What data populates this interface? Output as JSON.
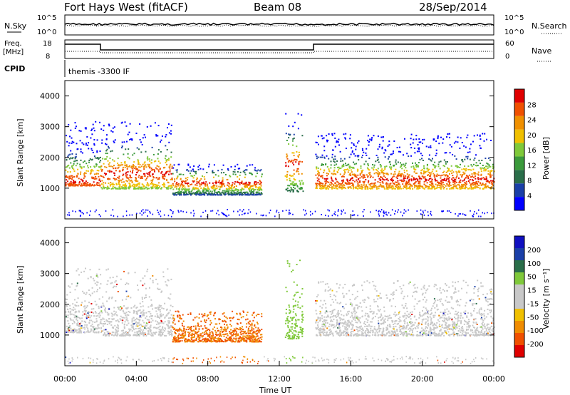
{
  "header": {
    "station": "Fort Hays West (fitACF)",
    "beam": "Beam 08",
    "date": "28/Sep/2014"
  },
  "panels": {
    "nsky_label": "N.Sky",
    "nsearch_label": "N.Search",
    "noise_ticks_left": [
      "10^5",
      "10^0"
    ],
    "noise_ticks_right": [
      "10^5",
      "10^0"
    ],
    "freq_label": "Freq.",
    "freq_unit": "[MHz]",
    "freq_ticks": [
      "18",
      "8"
    ],
    "nave_label": "Nave",
    "nave_ticks": [
      "60",
      "0"
    ],
    "cpid_label": "CPID",
    "cpid_text": "themis -3300 IF"
  },
  "colors": {
    "power": [
      "#0000ff",
      "#1a3fa8",
      "#2a6e4a",
      "#3b9a3b",
      "#7fc93a",
      "#f0c000",
      "#f09000",
      "#f05000",
      "#e00000"
    ],
    "velocity": [
      "#e00000",
      "#f05000",
      "#f08c00",
      "#f0c000",
      "#c8c8c8",
      "#c8c8c8",
      "#7fc93a",
      "#2a6e4a",
      "#1a3fa8",
      "#1010c0"
    ]
  },
  "chart_data": [
    {
      "type": "heatmap",
      "name": "power",
      "ylabel": "Slant Range [km]",
      "ylim": [
        0,
        4500
      ],
      "yticks": [
        1000,
        2000,
        3000,
        4000
      ],
      "xlim": [
        0,
        24
      ],
      "colorbar_label": "Power [dB]",
      "colorbar_ticks": [
        "28",
        "24",
        "20",
        "16",
        "12",
        "8",
        "4"
      ],
      "features": [
        {
          "hours": [
            0,
            2
          ],
          "range_km": [
            1100,
            3200
          ],
          "peak_km": 1250
        },
        {
          "hours": [
            2,
            6
          ],
          "range_km": [
            1000,
            3200
          ],
          "peak_km": 1500
        },
        {
          "hours": [
            6,
            11
          ],
          "range_km": [
            800,
            1800
          ],
          "peak_km": 1200
        },
        {
          "hours": [
            12.3,
            13.3
          ],
          "range_km": [
            900,
            3500
          ],
          "peak_km": 1800
        },
        {
          "hours": [
            14,
            24
          ],
          "range_km": [
            1000,
            2800
          ],
          "peak_km": 1300
        }
      ]
    },
    {
      "type": "heatmap",
      "name": "velocity",
      "ylabel": "Slant Range [km]",
      "xlabel": "Time UT",
      "ylim": [
        0,
        4500
      ],
      "yticks": [
        1000,
        2000,
        3000,
        4000
      ],
      "xlim": [
        0,
        24
      ],
      "xticks": [
        "00:00",
        "04:00",
        "08:00",
        "12:00",
        "16:00",
        "20:00",
        "00:00"
      ],
      "colorbar_label": "Velocity [m s⁻¹]",
      "colorbar_ticks": [
        "200",
        "100",
        "50",
        "15",
        "-15",
        "-50",
        "-100",
        "-200"
      ]
    }
  ]
}
